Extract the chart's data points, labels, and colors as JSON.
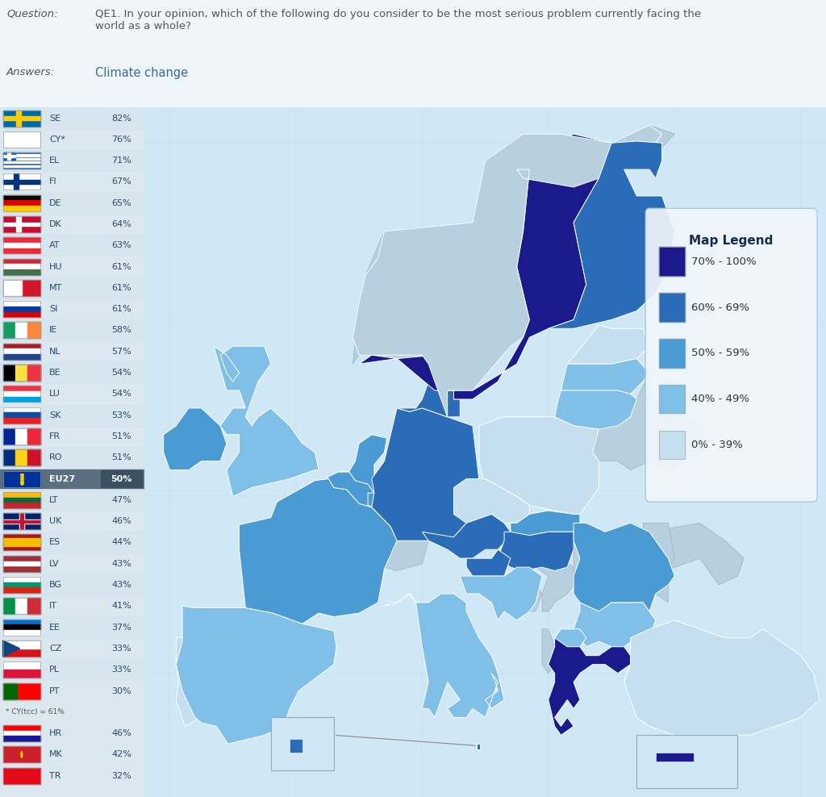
{
  "question_label": "Question:",
  "question_text": "QE1. In your opinion, which of the following do you consider to be the most serious problem currently facing the\nworld as a whole?",
  "answers_label": "Answers:",
  "answers_text": "Climate change",
  "countries": [
    {
      "code": "SE",
      "value": 82
    },
    {
      "code": "CY*",
      "value": 76
    },
    {
      "code": "EL",
      "value": 71
    },
    {
      "code": "FI",
      "value": 67
    },
    {
      "code": "DE",
      "value": 65
    },
    {
      "code": "DK",
      "value": 64
    },
    {
      "code": "AT",
      "value": 63
    },
    {
      "code": "HU",
      "value": 61
    },
    {
      "code": "MT",
      "value": 61
    },
    {
      "code": "SI",
      "value": 61
    },
    {
      "code": "IE",
      "value": 58
    },
    {
      "code": "NL",
      "value": 57
    },
    {
      "code": "BE",
      "value": 54
    },
    {
      "code": "LU",
      "value": 54
    },
    {
      "code": "SK",
      "value": 53
    },
    {
      "code": "FR",
      "value": 51
    },
    {
      "code": "RO",
      "value": 51
    },
    {
      "code": "EU27",
      "value": 50
    },
    {
      "code": "LT",
      "value": 47
    },
    {
      "code": "UK",
      "value": 46
    },
    {
      "code": "ES",
      "value": 44
    },
    {
      "code": "LV",
      "value": 43
    },
    {
      "code": "BG",
      "value": 43
    },
    {
      "code": "IT",
      "value": 41
    },
    {
      "code": "EE",
      "value": 37
    },
    {
      "code": "CZ",
      "value": 33
    },
    {
      "code": "PL",
      "value": 33
    },
    {
      "code": "PT",
      "value": 30
    }
  ],
  "extra_note": "* CY(tcc) = 61%",
  "extra_countries": [
    {
      "code": "HR",
      "value": 46
    },
    {
      "code": "MK",
      "value": 42
    },
    {
      "code": "TR",
      "value": 32
    }
  ],
  "legend_title": "Map Legend",
  "legend_items": [
    {
      "label": "70% - 100%",
      "color": "#1a1a8c"
    },
    {
      "label": "60% - 69%",
      "color": "#2b6cb8"
    },
    {
      "label": "50% - 59%",
      "color": "#4a9ad4"
    },
    {
      "label": "40% - 49%",
      "color": "#7fbfe8"
    },
    {
      "label": "0% - 39%",
      "color": "#c5dff0"
    }
  ],
  "ocean_color": "#d0e8f5",
  "land_bg_color": "#b8d4e8",
  "sidebar_bg": "#dce8f0",
  "page_bg": "#eef5fb"
}
